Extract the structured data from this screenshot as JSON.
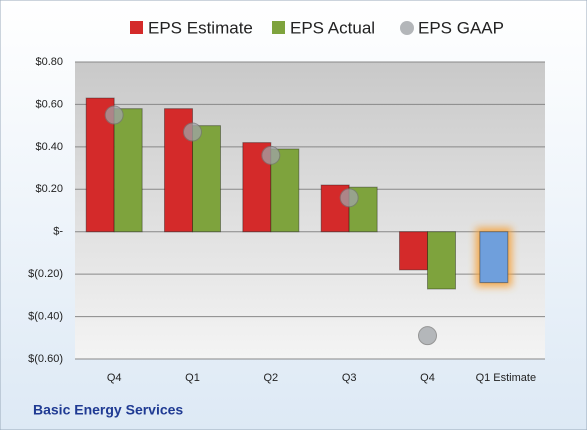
{
  "chart_data": {
    "type": "bar",
    "categories": [
      "Q4",
      "Q1",
      "Q2",
      "Q3",
      "Q4",
      "Q1 Estimate"
    ],
    "series": [
      {
        "name": "EPS Estimate",
        "color": "#d42a2a",
        "values": [
          0.63,
          0.58,
          0.42,
          0.22,
          -0.18,
          -0.24
        ]
      },
      {
        "name": "EPS Actual",
        "color": "#7ea33d",
        "values": [
          0.58,
          0.5,
          0.39,
          0.21,
          -0.27,
          null
        ]
      },
      {
        "name": "EPS GAAP",
        "color": "#a0a4a8",
        "values": [
          0.55,
          0.47,
          0.36,
          0.16,
          -0.49,
          null
        ]
      }
    ],
    "estimate_color": "#6f9fdc",
    "estimate_glow": "#f5a23a",
    "ylim": [
      -0.6,
      0.8
    ],
    "yticks": [
      {
        "value": 0.8,
        "label": "$0.80"
      },
      {
        "value": 0.6,
        "label": "$0.60"
      },
      {
        "value": 0.4,
        "label": "$0.40"
      },
      {
        "value": 0.2,
        "label": "$0.20"
      },
      {
        "value": 0,
        "label": "$-"
      },
      {
        "value": -0.2,
        "label": "$(0.20)"
      },
      {
        "value": -0.4,
        "label": "$(0.40)"
      },
      {
        "value": -0.6,
        "label": "$(0.60)"
      }
    ],
    "grid": true,
    "footer": "Basic Energy Services"
  }
}
